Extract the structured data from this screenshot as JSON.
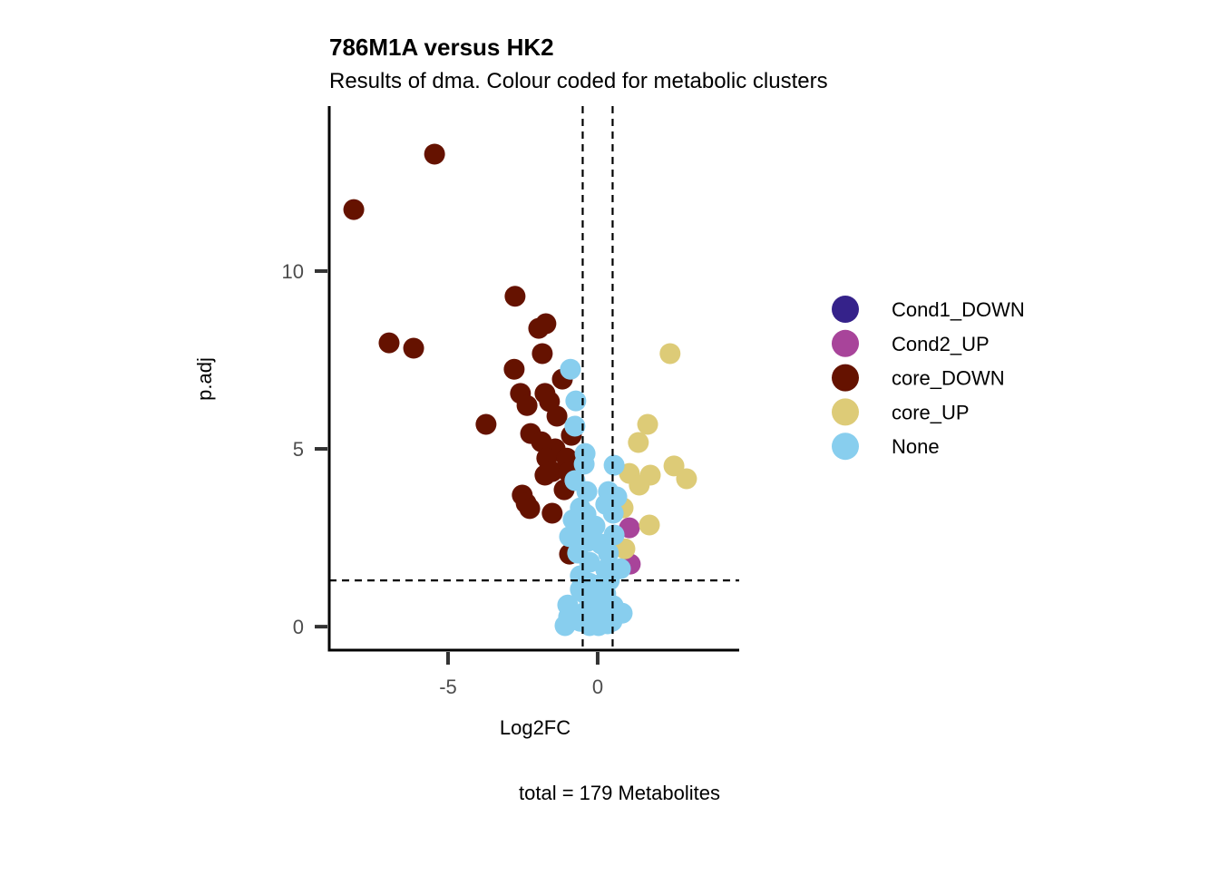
{
  "chart_data": {
    "type": "scatter",
    "title": "786M1A versus HK2",
    "subtitle": "Results of dma. Colour coded for metabolic clusters",
    "xlabel": "Log2FC",
    "ylabel": "p.adj",
    "caption": "total = 179 Metabolites",
    "xlim": [
      -8.97,
      4.73
    ],
    "ylim": [
      -0.66,
      14.64
    ],
    "x_ticks": [
      -5,
      0
    ],
    "y_ticks": [
      0,
      5,
      10
    ],
    "grid": false,
    "legend_position": "right",
    "thresholds": {
      "x": [
        -0.5,
        0.5
      ],
      "y": 1.3
    },
    "series": [
      {
        "name": "Cond1_DOWN",
        "color": "#35228A",
        "points": []
      },
      {
        "name": "Cond2_UP",
        "color": "#A8449A",
        "points": [
          [
            1.06,
            2.78
          ],
          [
            1.09,
            1.76
          ]
        ]
      },
      {
        "name": "core_DOWN",
        "color": "#651200",
        "points": [
          [
            -5.45,
            13.29
          ],
          [
            -8.15,
            11.73
          ],
          [
            -2.76,
            9.29
          ],
          [
            -1.73,
            8.52
          ],
          [
            -1.97,
            8.39
          ],
          [
            -6.97,
            7.98
          ],
          [
            -6.15,
            7.83
          ],
          [
            -1.85,
            7.68
          ],
          [
            -2.79,
            7.24
          ],
          [
            -1.18,
            6.96
          ],
          [
            -2.58,
            6.56
          ],
          [
            -1.76,
            6.56
          ],
          [
            -1.61,
            6.33
          ],
          [
            -2.36,
            6.22
          ],
          [
            -1.36,
            5.92
          ],
          [
            -3.73,
            5.69
          ],
          [
            -0.88,
            5.38
          ],
          [
            -2.24,
            5.43
          ],
          [
            -1.88,
            5.2
          ],
          [
            -1.42,
            5.0
          ],
          [
            -1.7,
            4.74
          ],
          [
            -1.03,
            4.74
          ],
          [
            -1.52,
            4.36
          ],
          [
            -1.76,
            4.26
          ],
          [
            -0.97,
            4.34
          ],
          [
            -2.52,
            3.7
          ],
          [
            -2.39,
            3.47
          ],
          [
            -2.27,
            3.32
          ],
          [
            -1.12,
            3.85
          ],
          [
            -1.52,
            3.19
          ],
          [
            -0.94,
            2.04
          ]
        ]
      },
      {
        "name": "core_UP",
        "color": "#DDCB77",
        "points": [
          [
            2.42,
            7.68
          ],
          [
            1.67,
            5.69
          ],
          [
            1.36,
            5.18
          ],
          [
            2.55,
            4.52
          ],
          [
            2.97,
            4.16
          ],
          [
            1.06,
            4.31
          ],
          [
            1.76,
            4.26
          ],
          [
            1.39,
            3.98
          ],
          [
            0.85,
            3.34
          ],
          [
            1.73,
            2.86
          ],
          [
            0.91,
            2.19
          ]
        ]
      },
      {
        "name": "None",
        "color": "#88CEEE",
        "points": [
          [
            -0.91,
            7.24
          ],
          [
            -0.73,
            6.35
          ],
          [
            -0.76,
            5.64
          ],
          [
            -0.42,
            4.87
          ],
          [
            -0.45,
            4.57
          ],
          [
            -0.76,
            4.11
          ],
          [
            -0.36,
            3.8
          ],
          [
            -0.58,
            3.34
          ],
          [
            -0.39,
            3.16
          ],
          [
            -0.82,
            3.01
          ],
          [
            -0.45,
            2.76
          ],
          [
            -0.94,
            2.53
          ],
          [
            -0.33,
            2.4
          ],
          [
            -0.67,
            2.07
          ],
          [
            -0.27,
            1.81
          ],
          [
            -0.58,
            1.43
          ],
          [
            -0.27,
            1.22
          ],
          [
            -0.42,
            0.92
          ],
          [
            -0.21,
            0.59
          ],
          [
            -1.0,
            0.61
          ],
          [
            -0.97,
            0.28
          ],
          [
            -1.09,
            0.03
          ],
          [
            -0.58,
            0.15
          ],
          [
            -0.27,
            0.03
          ],
          [
            0.03,
            0.03
          ],
          [
            0.33,
            0.08
          ],
          [
            0.82,
            0.38
          ],
          [
            0.52,
            0.59
          ],
          [
            0.27,
            0.92
          ],
          [
            0.39,
            1.3
          ],
          [
            0.03,
            1.17
          ],
          [
            0.55,
            4.54
          ],
          [
            0.36,
            3.8
          ],
          [
            0.64,
            3.65
          ],
          [
            0.27,
            3.44
          ],
          [
            0.52,
            3.19
          ],
          [
            0.55,
            2.58
          ],
          [
            0.36,
            2.07
          ],
          [
            0.76,
            1.63
          ],
          [
            0.27,
            1.61
          ],
          [
            0.12,
            2.32
          ],
          [
            -0.09,
            2.83
          ],
          [
            -0.42,
            0.41
          ],
          [
            -0.12,
            0.79
          ],
          [
            0.18,
            0.41
          ],
          [
            -0.58,
            1.05
          ],
          [
            -0.12,
            0.28
          ],
          [
            0.48,
            0.15
          ]
        ]
      }
    ]
  }
}
